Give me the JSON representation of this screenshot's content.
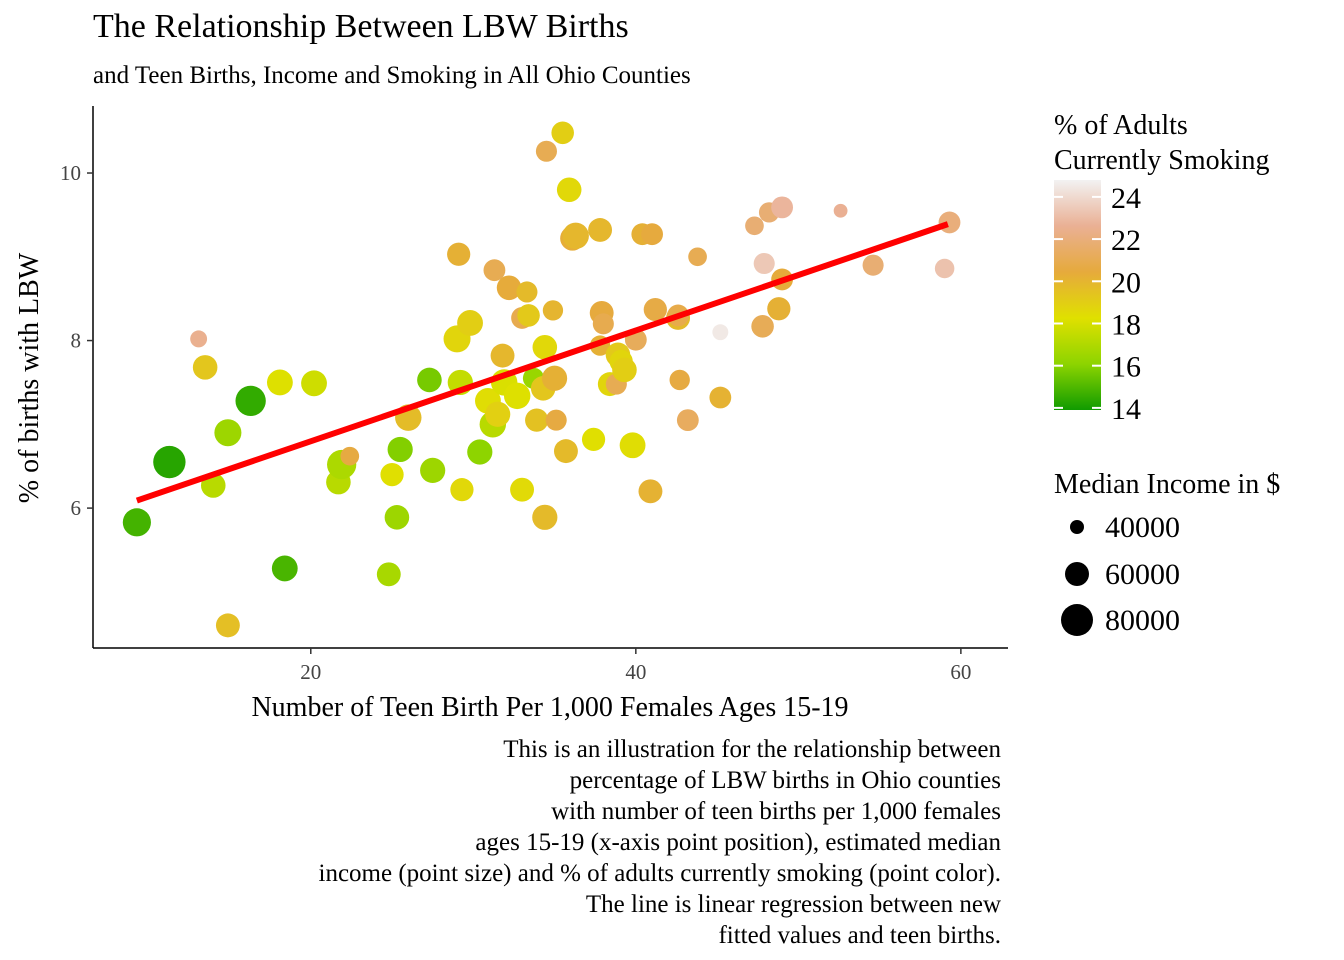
{
  "chart_data": {
    "type": "scatter",
    "title": "The Relationship Between LBW Births",
    "subtitle": "and Teen Births, Income and Smoking in All Ohio Counties",
    "xlabel": "Number of Teen Birth Per 1,000 Females Ages 15-19",
    "ylabel": "% of births with LBW",
    "xlim": [
      6.6,
      62.9
    ],
    "ylim": [
      4.33,
      10.8
    ],
    "x_ticks": [
      "20",
      "40",
      "60"
    ],
    "y_ticks": [
      "6",
      "8",
      "10"
    ],
    "grid": false,
    "caption": [
      "This is an illustration for the relationship between",
      "percentage of LBW births in Ohio counties",
      "with number of teen births per 1,000 females",
      "ages 15-19 (x-axis point position), estimated median",
      "income (point size) and % of adults currently smoking (point color).",
      "The line is linear regression between new",
      "fitted values and teen births."
    ],
    "legend_color": {
      "title": [
        "% of Adults",
        "Currently Smoking"
      ],
      "ticks": [
        "24",
        "22",
        "20",
        "18",
        "16",
        "14"
      ],
      "range": [
        13.9,
        24.8
      ],
      "colors": [
        "#109B00",
        "#8DD400",
        "#E0E000",
        "#E6AA3C",
        "#EAB094",
        "#F2F2F2"
      ]
    },
    "legend_size": {
      "title": "Median Income in $",
      "labels": [
        "40000",
        "60000",
        "80000"
      ]
    },
    "regression_line": {
      "color": "#FF0000",
      "x": [
        9.3,
        59.2
      ],
      "y": [
        6.09,
        9.39
      ]
    },
    "points": [
      {
        "x": 9.3,
        "y": 5.83,
        "smoking": 14.8,
        "income": 72000
      },
      {
        "x": 11.3,
        "y": 6.55,
        "smoking": 14.3,
        "income": 88000
      },
      {
        "x": 13.1,
        "y": 8.02,
        "smoking": 22.5,
        "income": 40000
      },
      {
        "x": 13.5,
        "y": 7.68,
        "smoking": 19.3,
        "income": 60000
      },
      {
        "x": 14.0,
        "y": 6.27,
        "smoking": 17.2,
        "income": 60000
      },
      {
        "x": 14.9,
        "y": 6.9,
        "smoking": 16.5,
        "income": 68000
      },
      {
        "x": 14.9,
        "y": 4.6,
        "smoking": 19.6,
        "income": 58000
      },
      {
        "x": 16.3,
        "y": 7.28,
        "smoking": 14.5,
        "income": 80000
      },
      {
        "x": 18.1,
        "y": 7.5,
        "smoking": 18.2,
        "income": 64000
      },
      {
        "x": 18.4,
        "y": 5.28,
        "smoking": 14.9,
        "income": 64000
      },
      {
        "x": 20.2,
        "y": 7.49,
        "smoking": 17.8,
        "income": 64000
      },
      {
        "x": 21.7,
        "y": 6.31,
        "smoking": 17.2,
        "income": 60000
      },
      {
        "x": 21.9,
        "y": 6.52,
        "smoking": 16.9,
        "income": 76000
      },
      {
        "x": 22.4,
        "y": 6.62,
        "smoking": 20.6,
        "income": 44000
      },
      {
        "x": 24.8,
        "y": 5.21,
        "smoking": 16.8,
        "income": 58000
      },
      {
        "x": 25.0,
        "y": 6.4,
        "smoking": 18.3,
        "income": 56000
      },
      {
        "x": 25.3,
        "y": 5.89,
        "smoking": 16.5,
        "income": 60000
      },
      {
        "x": 25.5,
        "y": 6.7,
        "smoking": 15.9,
        "income": 62000
      },
      {
        "x": 26.0,
        "y": 7.08,
        "smoking": 19.7,
        "income": 66000
      },
      {
        "x": 27.3,
        "y": 7.53,
        "smoking": 15.7,
        "income": 60000
      },
      {
        "x": 27.5,
        "y": 6.45,
        "smoking": 16.5,
        "income": 62000
      },
      {
        "x": 29.0,
        "y": 8.02,
        "smoking": 18.7,
        "income": 68000
      },
      {
        "x": 29.1,
        "y": 9.03,
        "smoking": 20.2,
        "income": 56000
      },
      {
        "x": 29.2,
        "y": 7.5,
        "smoking": 17.5,
        "income": 62000
      },
      {
        "x": 29.3,
        "y": 6.22,
        "smoking": 18.6,
        "income": 56000
      },
      {
        "x": 29.8,
        "y": 8.21,
        "smoking": 19.0,
        "income": 64000
      },
      {
        "x": 30.4,
        "y": 6.67,
        "smoking": 16.1,
        "income": 62000
      },
      {
        "x": 30.9,
        "y": 7.28,
        "smoking": 18.4,
        "income": 64000
      },
      {
        "x": 31.2,
        "y": 7.0,
        "smoking": 17.2,
        "income": 66000
      },
      {
        "x": 31.3,
        "y": 8.84,
        "smoking": 21.0,
        "income": 52000
      },
      {
        "x": 31.5,
        "y": 7.12,
        "smoking": 18.9,
        "income": 62000
      },
      {
        "x": 31.8,
        "y": 7.82,
        "smoking": 19.9,
        "income": 58000
      },
      {
        "x": 31.9,
        "y": 7.5,
        "smoking": 18.1,
        "income": 66000
      },
      {
        "x": 32.2,
        "y": 8.63,
        "smoking": 20.4,
        "income": 60000
      },
      {
        "x": 32.7,
        "y": 7.34,
        "smoking": 18.2,
        "income": 66000
      },
      {
        "x": 33.0,
        "y": 8.27,
        "smoking": 20.9,
        "income": 52000
      },
      {
        "x": 33.0,
        "y": 6.22,
        "smoking": 18.5,
        "income": 58000
      },
      {
        "x": 33.3,
        "y": 8.58,
        "smoking": 19.8,
        "income": 50000
      },
      {
        "x": 33.4,
        "y": 8.3,
        "smoking": 19.2,
        "income": 54000
      },
      {
        "x": 33.7,
        "y": 7.55,
        "smoking": 16.4,
        "income": 50000
      },
      {
        "x": 33.9,
        "y": 7.05,
        "smoking": 19.5,
        "income": 56000
      },
      {
        "x": 34.3,
        "y": 7.43,
        "smoking": 19.3,
        "income": 60000
      },
      {
        "x": 34.4,
        "y": 5.89,
        "smoking": 19.8,
        "income": 62000
      },
      {
        "x": 34.4,
        "y": 7.92,
        "smoking": 18.6,
        "income": 60000
      },
      {
        "x": 34.5,
        "y": 10.26,
        "smoking": 21.0,
        "income": 50000
      },
      {
        "x": 34.9,
        "y": 8.36,
        "smoking": 20.0,
        "income": 48000
      },
      {
        "x": 35.0,
        "y": 7.55,
        "smoking": 20.2,
        "income": 62000
      },
      {
        "x": 35.1,
        "y": 7.05,
        "smoking": 20.6,
        "income": 50000
      },
      {
        "x": 35.5,
        "y": 10.48,
        "smoking": 19.0,
        "income": 54000
      },
      {
        "x": 35.7,
        "y": 6.68,
        "smoking": 19.8,
        "income": 58000
      },
      {
        "x": 35.9,
        "y": 9.8,
        "smoking": 18.6,
        "income": 60000
      },
      {
        "x": 36.1,
        "y": 9.22,
        "smoking": 20.3,
        "income": 60000
      },
      {
        "x": 36.3,
        "y": 9.25,
        "smoking": 19.9,
        "income": 66000
      },
      {
        "x": 37.4,
        "y": 6.82,
        "smoking": 18.3,
        "income": 56000
      },
      {
        "x": 37.8,
        "y": 9.32,
        "smoking": 19.9,
        "income": 58000
      },
      {
        "x": 37.8,
        "y": 7.94,
        "smoking": 20.2,
        "income": 48000
      },
      {
        "x": 37.9,
        "y": 8.33,
        "smoking": 20.5,
        "income": 58000
      },
      {
        "x": 38.0,
        "y": 8.2,
        "smoking": 20.9,
        "income": 50000
      },
      {
        "x": 38.4,
        "y": 7.48,
        "smoking": 18.7,
        "income": 58000
      },
      {
        "x": 38.8,
        "y": 7.48,
        "smoking": 21.0,
        "income": 50000
      },
      {
        "x": 38.9,
        "y": 7.83,
        "smoking": 19.2,
        "income": 60000
      },
      {
        "x": 39.1,
        "y": 7.75,
        "smoking": 18.7,
        "income": 56000
      },
      {
        "x": 39.3,
        "y": 7.65,
        "smoking": 19.0,
        "income": 60000
      },
      {
        "x": 39.8,
        "y": 6.75,
        "smoking": 18.4,
        "income": 64000
      },
      {
        "x": 40.0,
        "y": 8.01,
        "smoking": 21.2,
        "income": 52000
      },
      {
        "x": 40.4,
        "y": 9.27,
        "smoking": 20.2,
        "income": 52000
      },
      {
        "x": 40.9,
        "y": 6.2,
        "smoking": 20.1,
        "income": 58000
      },
      {
        "x": 41.0,
        "y": 9.27,
        "smoking": 20.5,
        "income": 52000
      },
      {
        "x": 41.2,
        "y": 8.37,
        "smoking": 20.7,
        "income": 56000
      },
      {
        "x": 42.6,
        "y": 8.27,
        "smoking": 19.8,
        "income": 58000
      },
      {
        "x": 42.6,
        "y": 8.3,
        "smoking": 20.8,
        "income": 52000
      },
      {
        "x": 42.7,
        "y": 7.53,
        "smoking": 20.6,
        "income": 48000
      },
      {
        "x": 43.2,
        "y": 7.05,
        "smoking": 21.3,
        "income": 52000
      },
      {
        "x": 43.8,
        "y": 9.0,
        "smoking": 21.0,
        "income": 44000
      },
      {
        "x": 45.2,
        "y": 7.32,
        "smoking": 20.1,
        "income": 52000
      },
      {
        "x": 45.2,
        "y": 8.1,
        "smoking": 24.5,
        "income": 38000
      },
      {
        "x": 47.3,
        "y": 9.37,
        "smoking": 21.8,
        "income": 44000
      },
      {
        "x": 47.8,
        "y": 8.17,
        "smoking": 21.1,
        "income": 54000
      },
      {
        "x": 47.9,
        "y": 8.92,
        "smoking": 23.4,
        "income": 50000
      },
      {
        "x": 48.2,
        "y": 9.53,
        "smoking": 21.8,
        "income": 48000
      },
      {
        "x": 48.8,
        "y": 8.38,
        "smoking": 20.2,
        "income": 56000
      },
      {
        "x": 49.0,
        "y": 9.59,
        "smoking": 22.8,
        "income": 52000
      },
      {
        "x": 49.0,
        "y": 8.73,
        "smoking": 20.4,
        "income": 52000
      },
      {
        "x": 52.6,
        "y": 9.55,
        "smoking": 22.6,
        "income": 34000
      },
      {
        "x": 54.6,
        "y": 8.9,
        "smoking": 21.8,
        "income": 50000
      },
      {
        "x": 59.0,
        "y": 8.86,
        "smoking": 23.2,
        "income": 46000
      },
      {
        "x": 59.3,
        "y": 9.41,
        "smoking": 22.0,
        "income": 52000
      }
    ]
  }
}
